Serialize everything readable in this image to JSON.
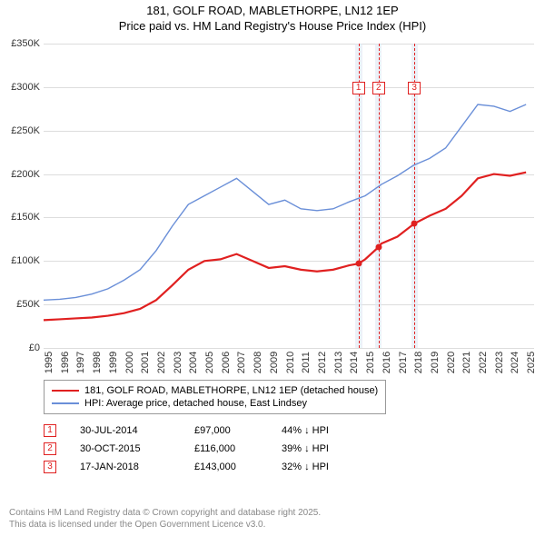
{
  "title": "181, GOLF ROAD, MABLETHORPE, LN12 1EP",
  "subtitle": "Price paid vs. HM Land Registry's House Price Index (HPI)",
  "chart": {
    "type": "line",
    "x_domain": [
      1995,
      2025.5
    ],
    "y_domain": [
      0,
      350
    ],
    "y_ticks": [
      0,
      50,
      100,
      150,
      200,
      250,
      300,
      350
    ],
    "y_tick_labels": [
      "£0",
      "£50K",
      "£100K",
      "£150K",
      "£200K",
      "£250K",
      "£300K",
      "£350K"
    ],
    "x_ticks": [
      1995,
      1996,
      1997,
      1998,
      1999,
      2000,
      2001,
      2002,
      2003,
      2004,
      2005,
      2006,
      2007,
      2008,
      2009,
      2010,
      2011,
      2012,
      2013,
      2014,
      2015,
      2016,
      2017,
      2018,
      2019,
      2020,
      2021,
      2022,
      2023,
      2024,
      2025
    ],
    "grid_color": "#dddddd",
    "background": "#ffffff",
    "band_color": "#e0e8f4",
    "bands": [
      {
        "from": 2014.4,
        "to": 2014.8
      },
      {
        "from": 2015.6,
        "to": 2016.0
      },
      {
        "from": 2017.85,
        "to": 2018.25
      }
    ],
    "vlines": [
      2014.58,
      2015.83,
      2018.05
    ],
    "markers": [
      {
        "x": 2014.58,
        "label": "1"
      },
      {
        "x": 2015.83,
        "label": "2"
      },
      {
        "x": 2018.05,
        "label": "3"
      }
    ],
    "marker_top": 82,
    "series": [
      {
        "name": "price_paid",
        "color": "#e02020",
        "width": 2.2,
        "points": [
          [
            1995,
            32
          ],
          [
            1996,
            33
          ],
          [
            1997,
            34
          ],
          [
            1998,
            35
          ],
          [
            1999,
            37
          ],
          [
            2000,
            40
          ],
          [
            2001,
            45
          ],
          [
            2002,
            55
          ],
          [
            2003,
            72
          ],
          [
            2004,
            90
          ],
          [
            2005,
            100
          ],
          [
            2006,
            102
          ],
          [
            2007,
            108
          ],
          [
            2008,
            100
          ],
          [
            2009,
            92
          ],
          [
            2010,
            94
          ],
          [
            2011,
            90
          ],
          [
            2012,
            88
          ],
          [
            2013,
            90
          ],
          [
            2014,
            95
          ],
          [
            2014.58,
            97
          ],
          [
            2015,
            102
          ],
          [
            2015.83,
            116
          ],
          [
            2016,
            120
          ],
          [
            2017,
            128
          ],
          [
            2018.05,
            143
          ],
          [
            2019,
            152
          ],
          [
            2020,
            160
          ],
          [
            2021,
            175
          ],
          [
            2022,
            195
          ],
          [
            2023,
            200
          ],
          [
            2024,
            198
          ],
          [
            2025,
            202
          ]
        ]
      },
      {
        "name": "hpi",
        "color": "#6a8fd8",
        "width": 1.4,
        "points": [
          [
            1995,
            55
          ],
          [
            1996,
            56
          ],
          [
            1997,
            58
          ],
          [
            1998,
            62
          ],
          [
            1999,
            68
          ],
          [
            2000,
            78
          ],
          [
            2001,
            90
          ],
          [
            2002,
            112
          ],
          [
            2003,
            140
          ],
          [
            2004,
            165
          ],
          [
            2005,
            175
          ],
          [
            2006,
            185
          ],
          [
            2007,
            195
          ],
          [
            2008,
            180
          ],
          [
            2009,
            165
          ],
          [
            2010,
            170
          ],
          [
            2011,
            160
          ],
          [
            2012,
            158
          ],
          [
            2013,
            160
          ],
          [
            2014,
            168
          ],
          [
            2015,
            175
          ],
          [
            2016,
            188
          ],
          [
            2017,
            198
          ],
          [
            2018,
            210
          ],
          [
            2019,
            218
          ],
          [
            2020,
            230
          ],
          [
            2021,
            255
          ],
          [
            2022,
            280
          ],
          [
            2023,
            278
          ],
          [
            2024,
            272
          ],
          [
            2025,
            280
          ]
        ]
      }
    ],
    "sale_dots": [
      [
        2014.58,
        97
      ],
      [
        2015.83,
        116
      ],
      [
        2018.05,
        143
      ]
    ]
  },
  "legend": [
    {
      "color": "#e02020",
      "width": 2.2,
      "label": "181, GOLF ROAD, MABLETHORPE, LN12 1EP (detached house)"
    },
    {
      "color": "#6a8fd8",
      "width": 1.4,
      "label": "HPI: Average price, detached house, East Lindsey"
    }
  ],
  "events": [
    {
      "n": "1",
      "date": "30-JUL-2014",
      "price": "£97,000",
      "delta": "44% ↓ HPI"
    },
    {
      "n": "2",
      "date": "30-OCT-2015",
      "price": "£116,000",
      "delta": "39% ↓ HPI"
    },
    {
      "n": "3",
      "date": "17-JAN-2018",
      "price": "£143,000",
      "delta": "32% ↓ HPI"
    }
  ],
  "footer1": "Contains HM Land Registry data © Crown copyright and database right 2025.",
  "footer2": "This data is licensed under the Open Government Licence v3.0."
}
